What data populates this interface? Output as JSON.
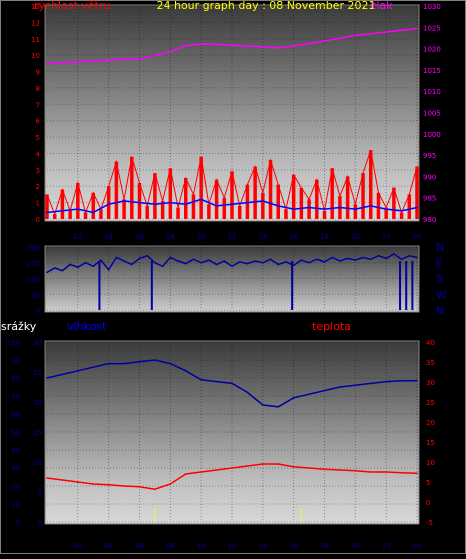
{
  "title": "24 hour graph day : 08 November 2021",
  "colors": {
    "background": "#000000",
    "border": "#808080",
    "wind": "#ff0000",
    "wind_avg": "#0000ff",
    "pressure": "#ff00ff",
    "direction": "#0000a0",
    "humidity": "#0000a0",
    "temperature": "#ff0000",
    "rain_axis": "#0000a0",
    "title": "#ffff00",
    "hour_ticks": "#0000a0",
    "rain_markers": "#ffff00"
  },
  "x_ticks": [
    "02",
    "04",
    "06",
    "08",
    "10",
    "12",
    "14",
    "16",
    "18",
    "20",
    "22",
    "00"
  ],
  "chart_data": [
    {
      "type": "line",
      "title": "24 hour graph day : 08 November 2021",
      "x_range": [
        0,
        24
      ],
      "y_left": {
        "label": "rychlost větru",
        "range": [
          0,
          13
        ],
        "ticks": [
          "0",
          "1",
          "2",
          "3",
          "4",
          "5",
          "6",
          "7",
          "8",
          "9",
          "10",
          "11",
          "12",
          "13"
        ]
      },
      "y_right": {
        "label": "tlak",
        "range": [
          980,
          1030
        ],
        "ticks": [
          "980",
          "985",
          "990",
          "995",
          "1000",
          "1005",
          "1010",
          "1015",
          "1020",
          "1025",
          "1030"
        ]
      },
      "series": [
        {
          "name": "tlak",
          "axis": "right",
          "x": [
            0,
            1,
            2,
            3,
            4,
            5,
            6,
            7,
            8,
            9,
            10,
            11,
            12,
            13,
            14,
            15,
            16,
            17,
            18,
            19,
            20,
            21,
            22,
            23,
            24
          ],
          "values": [
            1016.5,
            1016.6,
            1016.9,
            1017.1,
            1017.3,
            1017.5,
            1017.6,
            1018.3,
            1019.3,
            1020.7,
            1021.1,
            1021.0,
            1020.8,
            1020.6,
            1020.4,
            1020.2,
            1020.6,
            1021.2,
            1021.8,
            1022.4,
            1023.1,
            1023.5,
            1023.9,
            1024.3,
            1024.7
          ]
        },
        {
          "name": "wind_gust",
          "axis": "left",
          "x": [
            0,
            0.5,
            1,
            1.5,
            2,
            2.5,
            3,
            3.5,
            4,
            4.5,
            5,
            5.5,
            6,
            6.5,
            7,
            7.5,
            8,
            8.5,
            9,
            9.5,
            10,
            10.5,
            11,
            11.5,
            12,
            12.5,
            13,
            13.5,
            14,
            14.5,
            15,
            15.5,
            16,
            16.5,
            17,
            17.5,
            18,
            18.5,
            19,
            19.5,
            20,
            20.5,
            21,
            21.5,
            22,
            22.5,
            23,
            23.5,
            24
          ],
          "values": [
            1.5,
            0.3,
            1.8,
            0.5,
            2.2,
            0.4,
            1.6,
            0.6,
            2.0,
            3.5,
            1.2,
            3.8,
            2.2,
            0.8,
            2.8,
            1.1,
            3.1,
            0.7,
            2.5,
            1.5,
            3.8,
            0.9,
            2.4,
            1.3,
            2.9,
            0.8,
            2.1,
            3.2,
            1.6,
            3.6,
            2.1,
            0.6,
            2.7,
            1.9,
            1.2,
            2.4,
            0.5,
            3.1,
            1.4,
            2.6,
            0.9,
            2.8,
            4.2,
            1.6,
            0.7,
            1.9,
            0.4,
            1.5,
            3.2
          ]
        },
        {
          "name": "wind_avg",
          "axis": "left",
          "x": [
            0,
            1,
            2,
            3,
            4,
            5,
            6,
            7,
            8,
            9,
            10,
            11,
            12,
            13,
            14,
            15,
            16,
            17,
            18,
            19,
            20,
            21,
            22,
            23,
            24
          ],
          "values": [
            0.4,
            0.5,
            0.6,
            0.4,
            0.9,
            1.1,
            1.0,
            0.9,
            1.0,
            0.9,
            1.2,
            0.8,
            0.9,
            1.0,
            1.1,
            0.8,
            0.6,
            0.7,
            0.6,
            0.7,
            0.6,
            0.8,
            0.6,
            0.5,
            0.7
          ]
        }
      ]
    },
    {
      "type": "line",
      "y_left": {
        "range": [
          0,
          360
        ],
        "ticks": [
          "0",
          "90",
          "180",
          "270",
          "360"
        ]
      },
      "y_right_labels": [
        "N",
        "W",
        "S",
        "E",
        "N"
      ],
      "x_range": [
        0,
        24
      ],
      "series": [
        {
          "name": "direction",
          "x": [
            0,
            0.5,
            1,
            1.5,
            2,
            2.5,
            3,
            3.5,
            4,
            4.5,
            5,
            5.5,
            6,
            6.5,
            7,
            7.5,
            8,
            8.5,
            9,
            9.5,
            10,
            10.5,
            11,
            11.5,
            12,
            12.5,
            13,
            13.5,
            14,
            14.5,
            15,
            15.5,
            16,
            16.5,
            17,
            17.5,
            18,
            18.5,
            19,
            19.5,
            20,
            20.5,
            21,
            21.5,
            22,
            22.5,
            23,
            23.5,
            24
          ],
          "values": [
            215,
            240,
            225,
            260,
            245,
            270,
            250,
            285,
            230,
            300,
            280,
            260,
            295,
            310,
            270,
            250,
            300,
            280,
            265,
            290,
            270,
            285,
            260,
            280,
            250,
            275,
            265,
            280,
            270,
            290,
            260,
            275,
            255,
            285,
            270,
            290,
            275,
            300,
            280,
            295,
            285,
            300,
            290,
            310,
            295,
            320,
            290,
            310,
            300
          ]
        }
      ],
      "drops_to_zero_at": [
        3.4,
        6.8,
        15.9,
        22.9,
        23.3,
        23.7
      ]
    },
    {
      "type": "line",
      "x_range": [
        0,
        24
      ],
      "y_left_outer": {
        "label": "srážky",
        "range": [
          0,
          100
        ],
        "ticks": [
          "0",
          "10",
          "20",
          "30",
          "40",
          "50",
          "60",
          "70",
          "80",
          "90",
          "100"
        ]
      },
      "y_left_inner": {
        "label": "vlhkost",
        "range": [
          0,
          30
        ],
        "ticks": [
          "0",
          "5",
          "10",
          "15",
          "20",
          "25",
          "30"
        ]
      },
      "y_right": {
        "label": "teplota",
        "range": [
          -5,
          40
        ],
        "ticks": [
          "-5",
          "0",
          "5",
          "10",
          "15",
          "20",
          "25",
          "30",
          "35",
          "40"
        ]
      },
      "series": [
        {
          "name": "vlhkost",
          "axis": "outer",
          "x": [
            0,
            1,
            2,
            3,
            4,
            5,
            6,
            7,
            8,
            9,
            10,
            11,
            12,
            13,
            14,
            15,
            16,
            17,
            18,
            19,
            20,
            21,
            22,
            23,
            24
          ],
          "values": [
            80,
            82,
            84,
            86,
            88,
            88,
            89,
            90,
            88,
            84,
            79,
            78,
            77,
            72,
            65,
            64,
            69,
            71,
            73,
            75,
            76,
            77,
            78,
            78.5,
            78.5
          ]
        },
        {
          "name": "teplota",
          "axis": "right",
          "x": [
            0,
            1,
            2,
            3,
            4,
            5,
            6,
            7,
            8,
            9,
            10,
            11,
            12,
            13,
            14,
            15,
            16,
            17,
            18,
            19,
            20,
            21,
            22,
            23,
            24
          ],
          "values": [
            6,
            5.5,
            5,
            4.5,
            4.3,
            4,
            3.8,
            3.2,
            4.5,
            7,
            7.5,
            8,
            8.5,
            9,
            9.5,
            9.5,
            8.8,
            8.5,
            8.2,
            8,
            7.8,
            7.5,
            7.5,
            7.3,
            7.2
          ]
        }
      ],
      "rain_markers_x": [
        7.0,
        16.5
      ]
    }
  ]
}
